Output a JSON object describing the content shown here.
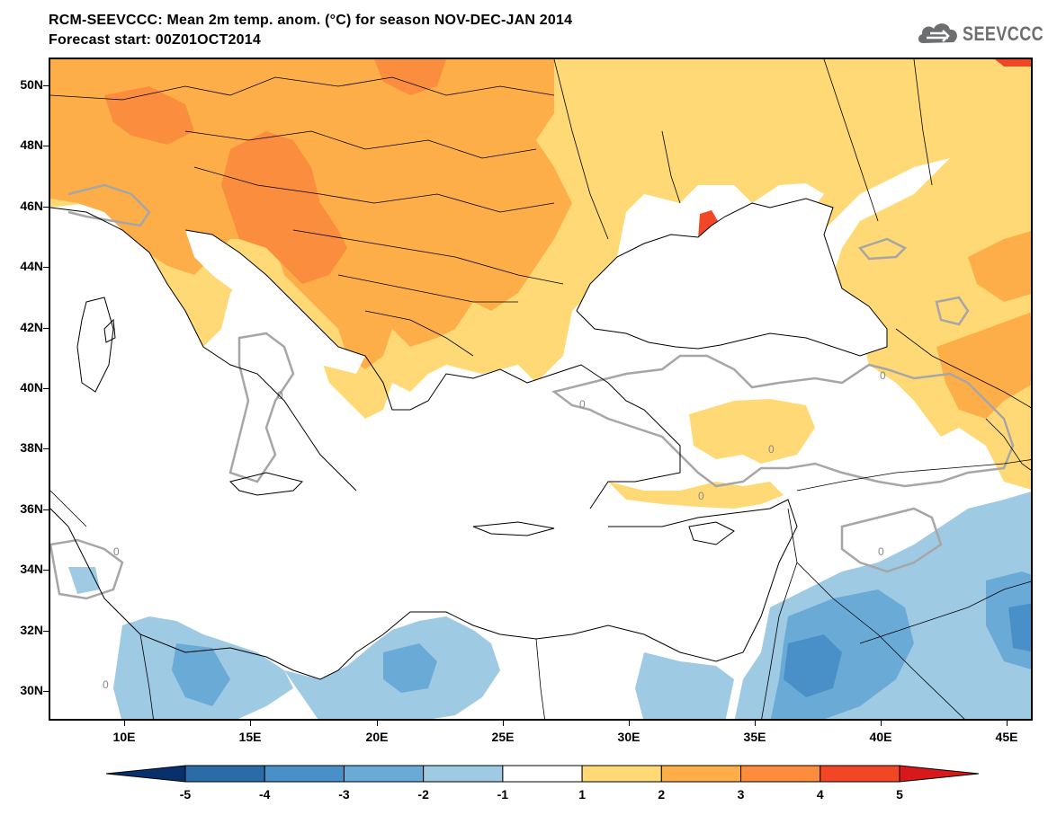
{
  "header": {
    "title": "RCM-SEEVCCC: Mean 2m temp. anom. (°C) for season NOV-DEC-JAN 2014",
    "subtitle": "Forecast start: 00Z01OCT2014"
  },
  "logo": {
    "text": "SEEVCCC",
    "icon": "cloud-icon",
    "color": "#6d6e70"
  },
  "axes": {
    "lat_labels": [
      "50N",
      "48N",
      "46N",
      "44N",
      "42N",
      "40N",
      "38N",
      "36N",
      "34N",
      "32N",
      "30N"
    ],
    "lon_labels": [
      "10E",
      "15E",
      "20E",
      "25E",
      "30E",
      "35E",
      "40E",
      "45E"
    ]
  },
  "contour_label": "0",
  "colorbar": {
    "labels": [
      "-5",
      "-4",
      "-3",
      "-2",
      "-1",
      "1",
      "2",
      "3",
      "4",
      "5"
    ],
    "colors": [
      "#08306b",
      "#2b6ba8",
      "#4a90c8",
      "#6aaad7",
      "#9fcae3",
      "#ffffff",
      "#fed976",
      "#fdae49",
      "#fd8c3c",
      "#f24727",
      "#d7191c"
    ]
  },
  "palette": {
    "warm_1": "#fed976",
    "warm_2": "#fdae49",
    "warm_3": "#fb8d3e",
    "warm_4": "#f24727",
    "cool_1": "#9fcae3",
    "cool_2": "#6aaad7",
    "cool_3": "#4a90c8",
    "contour": "#a6a6a6",
    "coast": "#000000"
  }
}
